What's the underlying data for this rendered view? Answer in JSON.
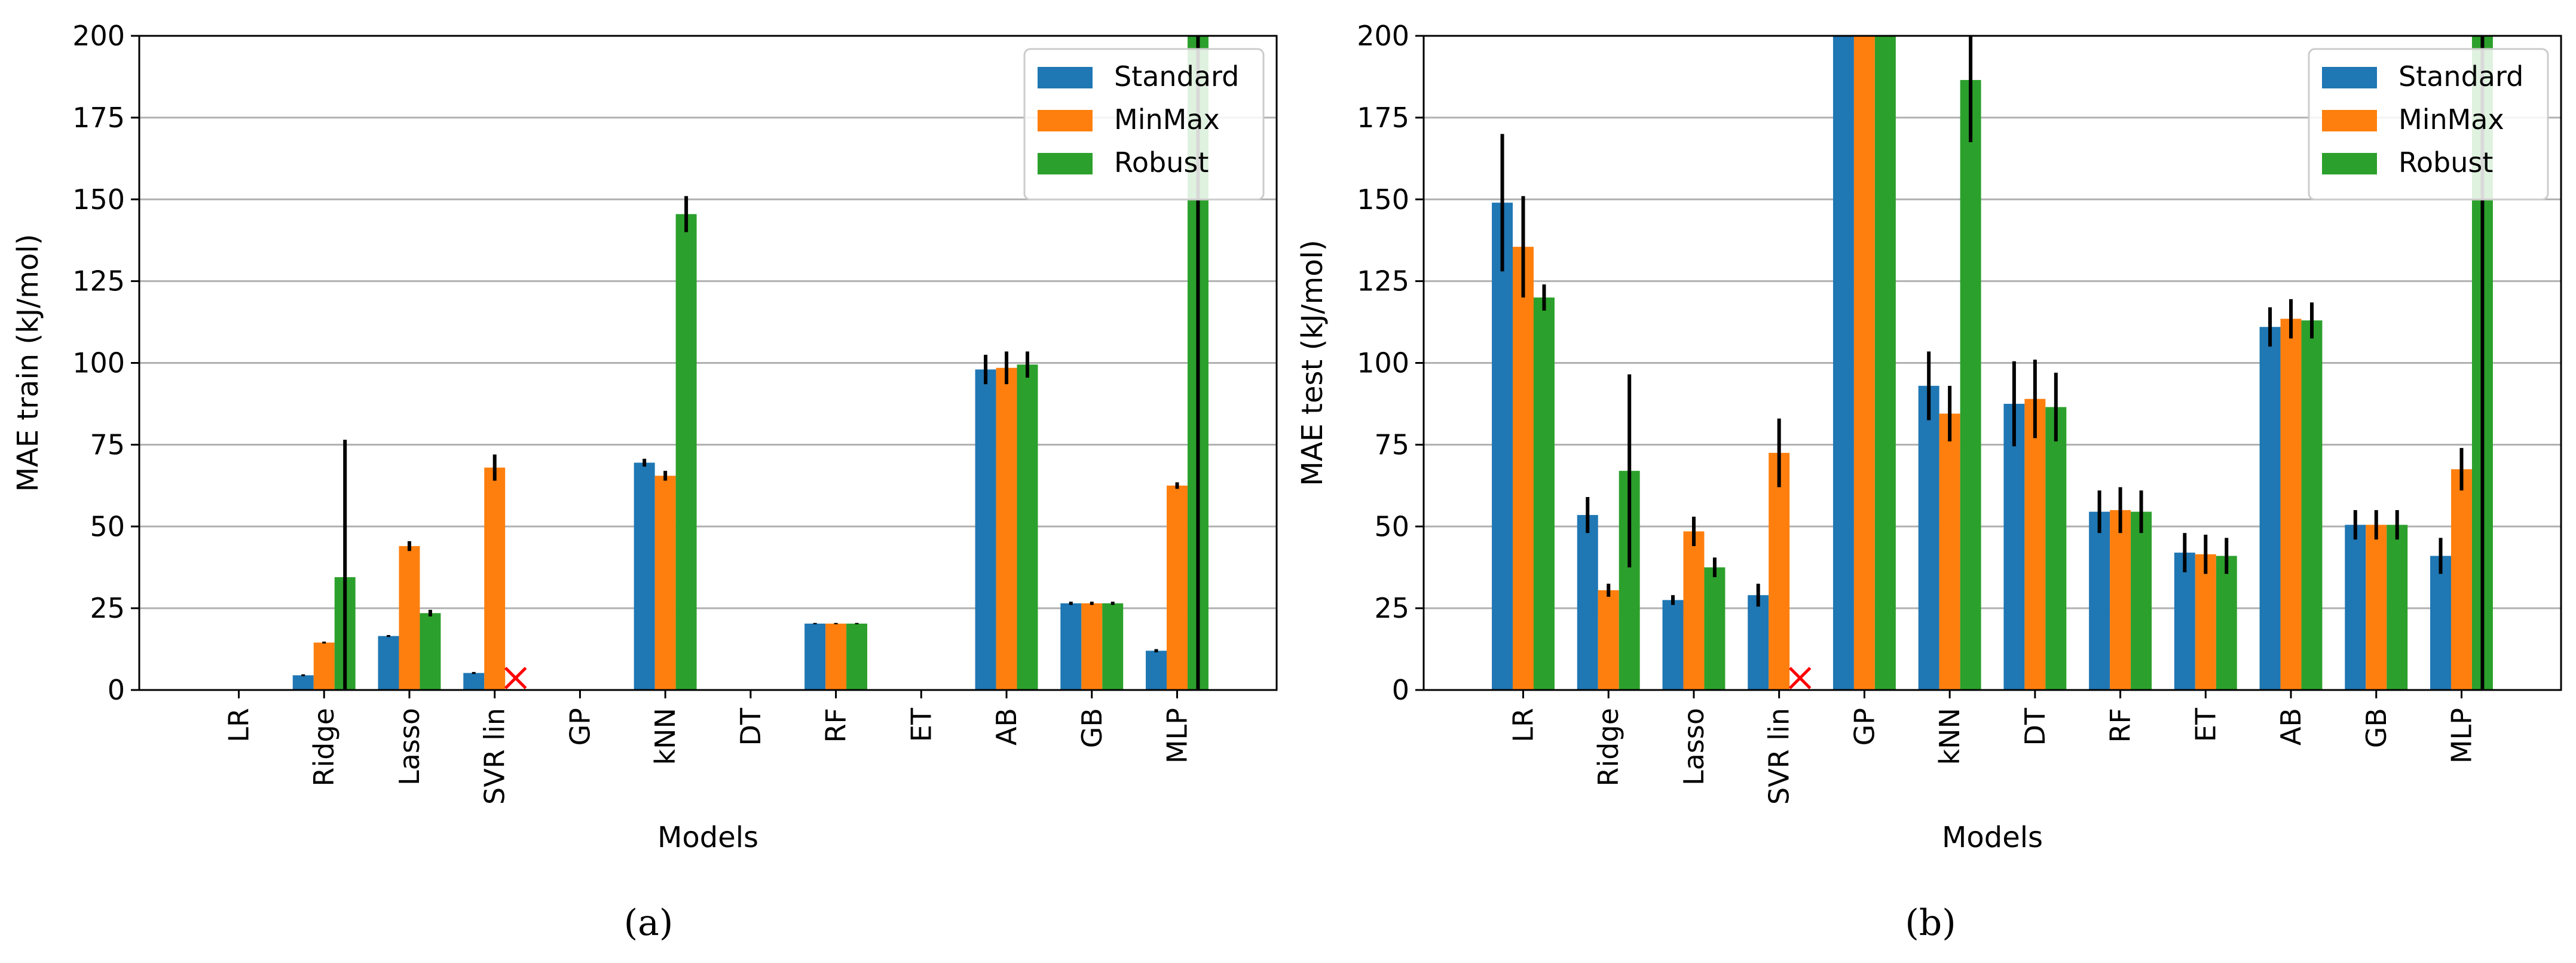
{
  "colors": {
    "Standard": "#1f77b4",
    "MinMax": "#ff7f0e",
    "Robust": "#2ca02c",
    "error": "#000000",
    "grid": "#b0b0b0",
    "marker": "#ff0000"
  },
  "chart_data": [
    {
      "type": "bar",
      "caption": "(a)",
      "xlabel": "Models",
      "ylabel": "MAE train (kJ/mol)",
      "ylim": [
        0,
        200
      ],
      "yticks": [
        "0",
        "25",
        "50",
        "75",
        "100",
        "125",
        "150",
        "175",
        "200"
      ],
      "categories": [
        "LR",
        "Ridge",
        "Lasso",
        "SVR lin",
        "GP",
        "kNN",
        "DT",
        "RF",
        "ET",
        "AB",
        "GB",
        "MLP"
      ],
      "legend": {
        "position": "top-right",
        "entries": [
          "Standard",
          "MinMax",
          "Robust"
        ]
      },
      "grid": true,
      "series": [
        {
          "name": "Standard",
          "values": [
            0,
            4.5,
            16.5,
            5.2,
            0,
            69.5,
            0,
            20.3,
            0,
            98,
            26.5,
            12
          ],
          "errors": [
            0,
            0.3,
            0.3,
            0.3,
            0,
            1.2,
            0,
            0.2,
            0,
            4.5,
            0.5,
            0.5
          ]
        },
        {
          "name": "MinMax",
          "values": [
            0,
            14.5,
            44,
            68,
            0,
            65.5,
            0,
            20.3,
            0,
            98.5,
            26.5,
            62.5
          ],
          "errors": [
            0,
            0.3,
            1.5,
            4,
            0,
            1.5,
            0,
            0.2,
            0,
            5,
            0.5,
            1
          ]
        },
        {
          "name": "Robust",
          "values": [
            0,
            34.5,
            23.5,
            null,
            0,
            145.5,
            0,
            20.3,
            0,
            99.5,
            26.5,
            200
          ],
          "errors": [
            0,
            42,
            1,
            0,
            0,
            5.5,
            0,
            0.2,
            0,
            4,
            0.5,
            200
          ]
        }
      ],
      "missing_markers": [
        {
          "category": "SVR lin",
          "series": "Robust",
          "symbol": "×"
        }
      ]
    },
    {
      "type": "bar",
      "caption": "(b)",
      "xlabel": "Models",
      "ylabel": "MAE test (kJ/mol)",
      "ylim": [
        0,
        200
      ],
      "yticks": [
        "0",
        "25",
        "50",
        "75",
        "100",
        "125",
        "150",
        "175",
        "200"
      ],
      "categories": [
        "LR",
        "Ridge",
        "Lasso",
        "SVR lin",
        "GP",
        "kNN",
        "DT",
        "RF",
        "ET",
        "AB",
        "GB",
        "MLP"
      ],
      "legend": {
        "position": "top-right",
        "entries": [
          "Standard",
          "MinMax",
          "Robust"
        ]
      },
      "grid": true,
      "series": [
        {
          "name": "Standard",
          "values": [
            149,
            53.5,
            27.5,
            29,
            200,
            93,
            87.5,
            54.5,
            42,
            111,
            50.5,
            41
          ],
          "errors": [
            21,
            5.5,
            1.5,
            3.5,
            0,
            10.5,
            13,
            6.5,
            6,
            6,
            4.5,
            5.5
          ]
        },
        {
          "name": "MinMax",
          "values": [
            135.5,
            30.5,
            48.5,
            72.5,
            200,
            84.5,
            89,
            55,
            41.5,
            113.5,
            50.5,
            67.5
          ],
          "errors": [
            15.5,
            2,
            4.5,
            10.5,
            0,
            8.5,
            12,
            7,
            6,
            6,
            4.5,
            6.5
          ]
        },
        {
          "name": "Robust",
          "values": [
            120,
            67,
            37.5,
            null,
            200,
            186.5,
            86.5,
            54.5,
            41,
            113,
            50.5,
            200
          ],
          "errors": [
            4,
            29.5,
            3,
            0,
            0,
            19,
            10.5,
            6.5,
            5.5,
            5.5,
            4.5,
            200
          ]
        }
      ],
      "missing_markers": [
        {
          "category": "SVR lin",
          "series": "Robust",
          "symbol": "×"
        }
      ]
    }
  ]
}
